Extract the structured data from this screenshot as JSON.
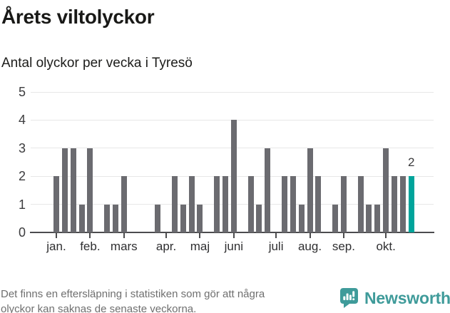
{
  "title": "Årets viltolyckor",
  "subtitle": "Antal olyckor per vecka i Tyresö",
  "chart_data": {
    "type": "bar",
    "x_unit": "vecka (week of year)",
    "first_week": 1,
    "values": [
      2,
      3,
      3,
      1,
      3,
      0,
      1,
      1,
      2,
      0,
      0,
      0,
      1,
      0,
      2,
      1,
      2,
      1,
      0,
      2,
      2,
      4,
      0,
      2,
      1,
      3,
      0,
      2,
      2,
      1,
      3,
      2,
      0,
      1,
      2,
      0,
      2,
      1,
      1,
      3,
      2,
      2,
      2
    ],
    "month_ticks": [
      {
        "label": "jan.",
        "week": 1
      },
      {
        "label": "feb.",
        "week": 5
      },
      {
        "label": "mars",
        "week": 9
      },
      {
        "label": "apr.",
        "week": 14
      },
      {
        "label": "maj",
        "week": 18
      },
      {
        "label": "juni",
        "week": 22
      },
      {
        "label": "juli",
        "week": 27
      },
      {
        "label": "aug.",
        "week": 31
      },
      {
        "label": "sep.",
        "week": 35
      },
      {
        "label": "okt.",
        "week": 40
      }
    ],
    "ylim": [
      0,
      5
    ],
    "yticks": [
      0,
      1,
      2,
      3,
      4,
      5
    ],
    "grid": "horizontal",
    "legend": "none",
    "highlight_last_bar": true,
    "last_bar_label": "2",
    "colors": {
      "bar": "#6b6b70",
      "highlight": "#00a49b",
      "gridline": "#e7e7e7",
      "axis": "#4c4c4e"
    }
  },
  "footer": {
    "lines": [
      "Det finns en eftersläpning i statistiken som gör att några",
      "olyckor kan saknas de senaste veckorna."
    ]
  },
  "logo": {
    "text": "Newsworthy",
    "color": "#3f9b9a",
    "icon": "newsworthy-speech-bubble-chart-icon"
  }
}
